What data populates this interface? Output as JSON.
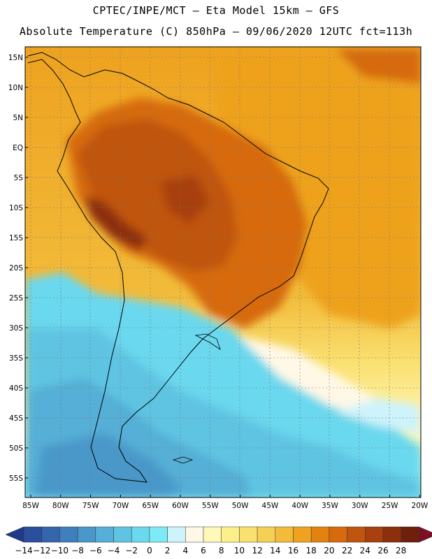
{
  "header": {
    "line1": "CPTEC/INPE/MCT –  Eta Model 15km – GFS",
    "line2": "Absolute Temperature (C) 850hPa – 09/06/2020 12UTC fct=113h"
  },
  "axes": {
    "lat_labels": [
      "15N",
      "10N",
      "5N",
      "EQ",
      "5S",
      "10S",
      "15S",
      "20S",
      "25S",
      "30S",
      "35S",
      "40S",
      "45S",
      "50S",
      "55S"
    ],
    "lon_labels": [
      "85W",
      "80W",
      "75W",
      "70W",
      "65W",
      "60W",
      "55W",
      "50W",
      "45W",
      "40W",
      "35W",
      "30W",
      "25W",
      "20W"
    ]
  },
  "colorbar": {
    "labels": [
      "-14",
      "-12",
      "-10",
      "-8",
      "-6",
      "-4",
      "-2",
      "0",
      "2",
      "4",
      "6",
      "8",
      "10",
      "12",
      "14",
      "16",
      "18",
      "20",
      "22",
      "24",
      "26",
      "28"
    ],
    "colors": [
      "#1f3a8a",
      "#2b4f9e",
      "#3566ad",
      "#3f7fbd",
      "#4a98c9",
      "#55afd6",
      "#5fc4e2",
      "#6ad8ee",
      "#7eeaf5",
      "#cdf3fb",
      "#fff8e6",
      "#fff8b8",
      "#fdef8a",
      "#fae070",
      "#f6cf55",
      "#f2bb3a",
      "#eea21f",
      "#e4820f",
      "#d66a0c",
      "#c05510",
      "#a8410e",
      "#8c2f0c",
      "#6f1f0a",
      "#7a0f25"
    ]
  },
  "chart_data": {
    "type": "heatmap",
    "title": "Absolute Temperature (C) 850hPa – 09/06/2020 12UTC fct=113h",
    "model": "CPTEC/INPE/MCT – Eta Model 15km – GFS",
    "units": "C",
    "lon_range": [
      -85,
      -20
    ],
    "lat_range": [
      -57,
      16
    ],
    "colorbar_levels": [
      -14,
      -12,
      -10,
      -8,
      -6,
      -4,
      -2,
      0,
      2,
      4,
      6,
      8,
      10,
      12,
      14,
      16,
      18,
      20,
      22,
      24,
      26,
      28
    ]
  }
}
